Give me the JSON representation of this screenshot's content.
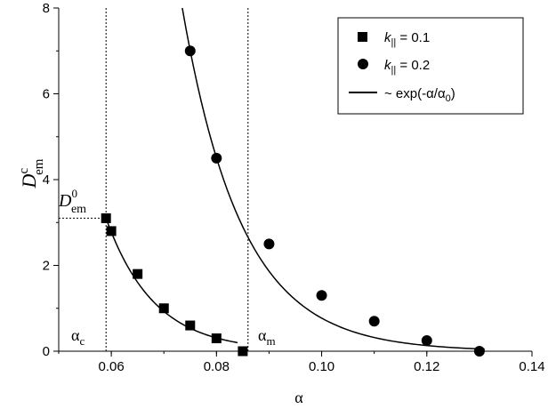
{
  "chart_data": {
    "type": "scatter",
    "x_ticks": [
      "0.06",
      "0.08",
      "0.10",
      "0.12",
      "0.14"
    ],
    "x_tick_values": [
      0.06,
      0.08,
      0.1,
      0.12,
      0.14
    ],
    "y_ticks": [
      "0",
      "2",
      "4",
      "6",
      "8"
    ],
    "y_tick_values": [
      0,
      2,
      4,
      6,
      8
    ],
    "xlim": [
      0.05,
      0.14
    ],
    "ylim": [
      0,
      8
    ],
    "xlabel": "α",
    "ylabel": {
      "main": "D",
      "sup": "c",
      "sub": "em"
    },
    "series": [
      {
        "name": {
          "k": "k",
          "sub": "||",
          "rest": " = 0.1"
        },
        "marker": "square",
        "x": [
          0.059,
          0.06,
          0.065,
          0.07,
          0.075,
          0.08,
          0.085
        ],
        "y": [
          3.1,
          2.8,
          1.8,
          1.0,
          0.6,
          0.3,
          0.0
        ]
      },
      {
        "name": {
          "k": "k",
          "sub": "||",
          "rest": " = 0.2"
        },
        "marker": "circle",
        "x": [
          0.075,
          0.08,
          0.09,
          0.1,
          0.11,
          0.12,
          0.13
        ],
        "y": [
          7.0,
          4.5,
          2.5,
          1.3,
          0.7,
          0.25,
          0.0
        ]
      }
    ],
    "fits": [
      {
        "x_start": 0.059,
        "x_end": 0.084,
        "y_start": 3.1,
        "y_end": 0.2
      },
      {
        "x_start": 0.0735,
        "x_end": 0.131,
        "y_start": 8.0,
        "y_end": 0.05
      }
    ],
    "fit_legend": {
      "prefix": "~ exp(-",
      "alpha": "α",
      "slash": "/",
      "alpha0": "α",
      "sub0": "0",
      "suffix": ")"
    },
    "vlines": [
      0.059,
      0.086
    ],
    "hline": {
      "y": 3.1,
      "x_from": 0.05,
      "x_to": 0.059
    },
    "annotations": {
      "alpha_c": {
        "main": "α",
        "sub": "c"
      },
      "alpha_m": {
        "main": "α",
        "sub": "m"
      },
      "d0": {
        "main": "D",
        "sup": "0",
        "sub": "em"
      }
    },
    "legend_position": "top-right",
    "grid": false
  }
}
